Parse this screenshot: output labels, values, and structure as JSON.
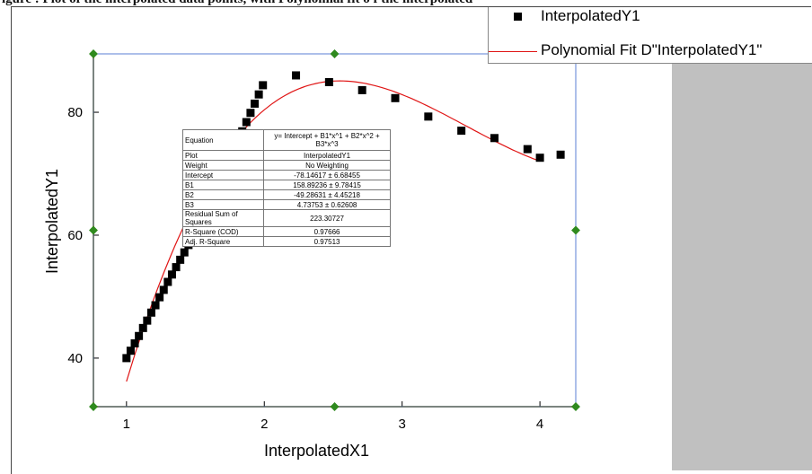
{
  "caption_fragment": "igure  : Plot of the interpolated data points, with Polynomial fit o f the interpolated",
  "chart_data": {
    "type": "scatter",
    "xlabel": "InterpolatedX1",
    "ylabel": "InterpolatedY1",
    "xlim": [
      0.76,
      4.26
    ],
    "ylim": [
      32.1,
      89.5
    ],
    "xticks": [
      1,
      2,
      3,
      4
    ],
    "yticks": [
      40,
      60,
      80
    ],
    "grid": false,
    "legend_position": "top-right",
    "series": [
      {
        "name": "InterpolatedY1",
        "type": "scatter",
        "marker": "square",
        "color": "#000000",
        "x": [
          1.0,
          1.03,
          1.06,
          1.09,
          1.12,
          1.15,
          1.18,
          1.21,
          1.24,
          1.27,
          1.3,
          1.33,
          1.36,
          1.39,
          1.42,
          1.45,
          1.48,
          1.51,
          1.54,
          1.57,
          1.6,
          1.63,
          1.66,
          1.69,
          1.72,
          1.75,
          1.78,
          1.81,
          1.84,
          1.87,
          1.9,
          1.93,
          1.96,
          1.99,
          2.23,
          2.47,
          2.71,
          2.95,
          3.19,
          3.43,
          3.67,
          3.91,
          4.15,
          4.0
        ],
        "y": [
          40.0,
          41.2,
          42.4,
          43.6,
          44.9,
          46.1,
          47.4,
          48.6,
          49.9,
          51.1,
          52.4,
          53.6,
          54.8,
          56.0,
          57.2,
          58.4,
          59.6,
          60.8,
          62.0,
          63.1,
          64.3,
          65.4,
          66.5,
          67.6,
          68.7,
          69.8,
          70.9,
          71.9,
          76.9,
          78.4,
          79.9,
          81.4,
          82.9,
          84.4,
          86.0,
          84.9,
          83.6,
          82.3,
          79.3,
          77.0,
          75.8,
          74.0,
          73.1,
          72.6
        ]
      },
      {
        "name": "Polynomial Fit D\"InterpolatedY1\"",
        "type": "line",
        "color": "#e01515",
        "equation_coefficients": {
          "intercept": -78.14617,
          "b1": 158.89236,
          "b2": -49.28631,
          "b3": 4.73753
        },
        "x_range": [
          1.0,
          4.0
        ]
      }
    ],
    "fit_table": {
      "rows": [
        {
          "label": "Equation",
          "value": "y= Intercept + B1*x^1 + B2*x^2 + B3*x^3"
        },
        {
          "label": "Plot",
          "value": "InterpolatedY1"
        },
        {
          "label": "Weight",
          "value": "No Weighting"
        },
        {
          "label": "Intercept",
          "value": "-78.14617 ± 6.68455"
        },
        {
          "label": "B1",
          "value": "158.89236 ± 9.78415"
        },
        {
          "label": "B2",
          "value": "-49.28631 ± 4.45218"
        },
        {
          "label": "B3",
          "value": "4.73753 ± 0.62608"
        },
        {
          "label": "Residual Sum of Squares",
          "value": "223.30727"
        },
        {
          "label": "R-Square (COD)",
          "value": "0.97666"
        },
        {
          "label": "Adj. R-Square",
          "value": "0.97513"
        }
      ]
    }
  },
  "colors": {
    "frame_axis": "#9b8a2a",
    "selection_box": "#5b7fd6",
    "handle": "#2f8a1e",
    "fit_line": "#e01515",
    "side_panel": "#c0c0c0"
  }
}
